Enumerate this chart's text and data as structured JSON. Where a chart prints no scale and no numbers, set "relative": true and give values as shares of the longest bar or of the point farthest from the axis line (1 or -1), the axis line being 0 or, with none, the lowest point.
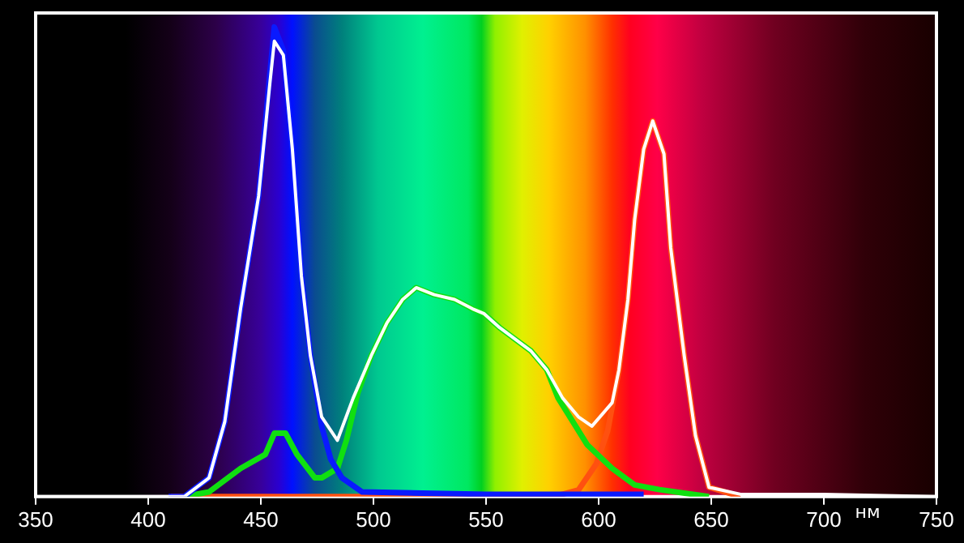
{
  "chart_data": {
    "type": "line",
    "relative": true,
    "xlabel": "нм",
    "xlim": [
      350,
      750
    ],
    "xticks": [
      350,
      400,
      450,
      500,
      550,
      600,
      650,
      700,
      750
    ],
    "grid": false,
    "legend": false,
    "marker": "none",
    "line_style": "solid",
    "series": [
      {
        "color": "#ff5010",
        "x": [
          410,
          500,
          580,
          591,
          599,
          604,
          609,
          613,
          616,
          620,
          624,
          629,
          632,
          638,
          643,
          649,
          663
        ],
        "values": [
          0,
          0,
          0,
          0.014,
          0.07,
          0.14,
          0.27,
          0.42,
          0.59,
          0.74,
          0.8,
          0.73,
          0.53,
          0.3,
          0.13,
          0.02,
          0
        ]
      },
      {
        "color": "#10e010",
        "x": [
          416,
          427,
          441,
          452,
          456,
          461,
          466,
          474,
          477,
          484,
          488,
          493,
          499,
          506,
          513,
          519,
          527,
          536,
          544,
          549,
          556,
          570,
          577,
          582,
          595,
          606,
          616,
          627,
          649
        ],
        "values": [
          0,
          0.01,
          0.06,
          0.09,
          0.135,
          0.135,
          0.09,
          0.04,
          0.04,
          0.06,
          0.12,
          0.22,
          0.3,
          0.37,
          0.42,
          0.445,
          0.43,
          0.42,
          0.4,
          0.39,
          0.36,
          0.31,
          0.27,
          0.21,
          0.11,
          0.06,
          0.025,
          0.015,
          0
        ]
      },
      {
        "color": "#0a1aff",
        "x": [
          409,
          416,
          427,
          434,
          441,
          449,
          454,
          456,
          460,
          464,
          468,
          472,
          477,
          481,
          486,
          495,
          550,
          620
        ],
        "values": [
          0,
          0,
          0.04,
          0.16,
          0.4,
          0.64,
          0.9,
          1.0,
          0.95,
          0.74,
          0.47,
          0.3,
          0.15,
          0.08,
          0.04,
          0.01,
          0.005,
          0.005
        ]
      },
      {
        "color": "#ffffff",
        "x": [
          350,
          409,
          416,
          427,
          434,
          441,
          449,
          454,
          456,
          460,
          464,
          468,
          472,
          477,
          484,
          491,
          499,
          506,
          513,
          519,
          527,
          536,
          544,
          549,
          556,
          570,
          577,
          584,
          591,
          597,
          606,
          609,
          613,
          616,
          620,
          624,
          629,
          632,
          638,
          643,
          649,
          663,
          700,
          750
        ],
        "values": [
          0,
          0,
          0,
          0.04,
          0.16,
          0.4,
          0.64,
          0.88,
          0.97,
          0.94,
          0.74,
          0.47,
          0.3,
          0.17,
          0.12,
          0.21,
          0.3,
          0.37,
          0.42,
          0.445,
          0.43,
          0.42,
          0.4,
          0.39,
          0.36,
          0.31,
          0.27,
          0.21,
          0.17,
          0.15,
          0.2,
          0.27,
          0.42,
          0.59,
          0.74,
          0.8,
          0.73,
          0.53,
          0.3,
          0.13,
          0.02,
          0.005,
          0.005,
          0
        ]
      }
    ]
  }
}
